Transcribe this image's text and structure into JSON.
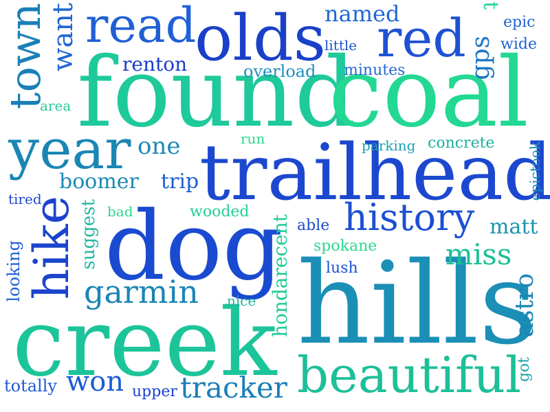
{
  "words": {
    "found": "found",
    "coal": "coal",
    "trailhead": "trailhead",
    "hills": "hills",
    "creek": "creek",
    "dog": "dog",
    "olds": "olds",
    "read": "read",
    "red": "red",
    "year": "year",
    "town": "town",
    "history": "history",
    "beautiful": "beautiful",
    "hike": "hike",
    "garmin": "garmin",
    "miss": "miss",
    "tracker": "tracker",
    "won": "won",
    "named": "named",
    "one": "one",
    "boomer": "boomer",
    "renton": "renton",
    "overload": "overload",
    "minutes": "minutes",
    "epic": "epic",
    "wide": "wide",
    "little": "little",
    "gps": "gps",
    "t": "t",
    "want": "want",
    "area": "area",
    "run": "run",
    "parking": "parking",
    "concrete": "concrete",
    "trip": "trip",
    "tired": "tired",
    "bad": "bad",
    "wooded": "wooded",
    "suggest": "suggest",
    "epictook": "epictook",
    "able": "able",
    "matt": "matt",
    "hondarecent": "hondarecent",
    "spokane": "spokane",
    "lush": "lush",
    "looking": "looking",
    "nice": "nice",
    "astro": "astro",
    "totally": "totally",
    "upper": "upper",
    "got": "got"
  },
  "colors": {
    "blue_deep": "#1a3fcb",
    "blue": "#1f55d6",
    "blue_mid": "#2268cc",
    "teal_blue": "#1a82b8",
    "teal": "#1aa3a3",
    "teal_green": "#1bbf97",
    "green": "#1fd493",
    "mint": "#2ad88f"
  }
}
